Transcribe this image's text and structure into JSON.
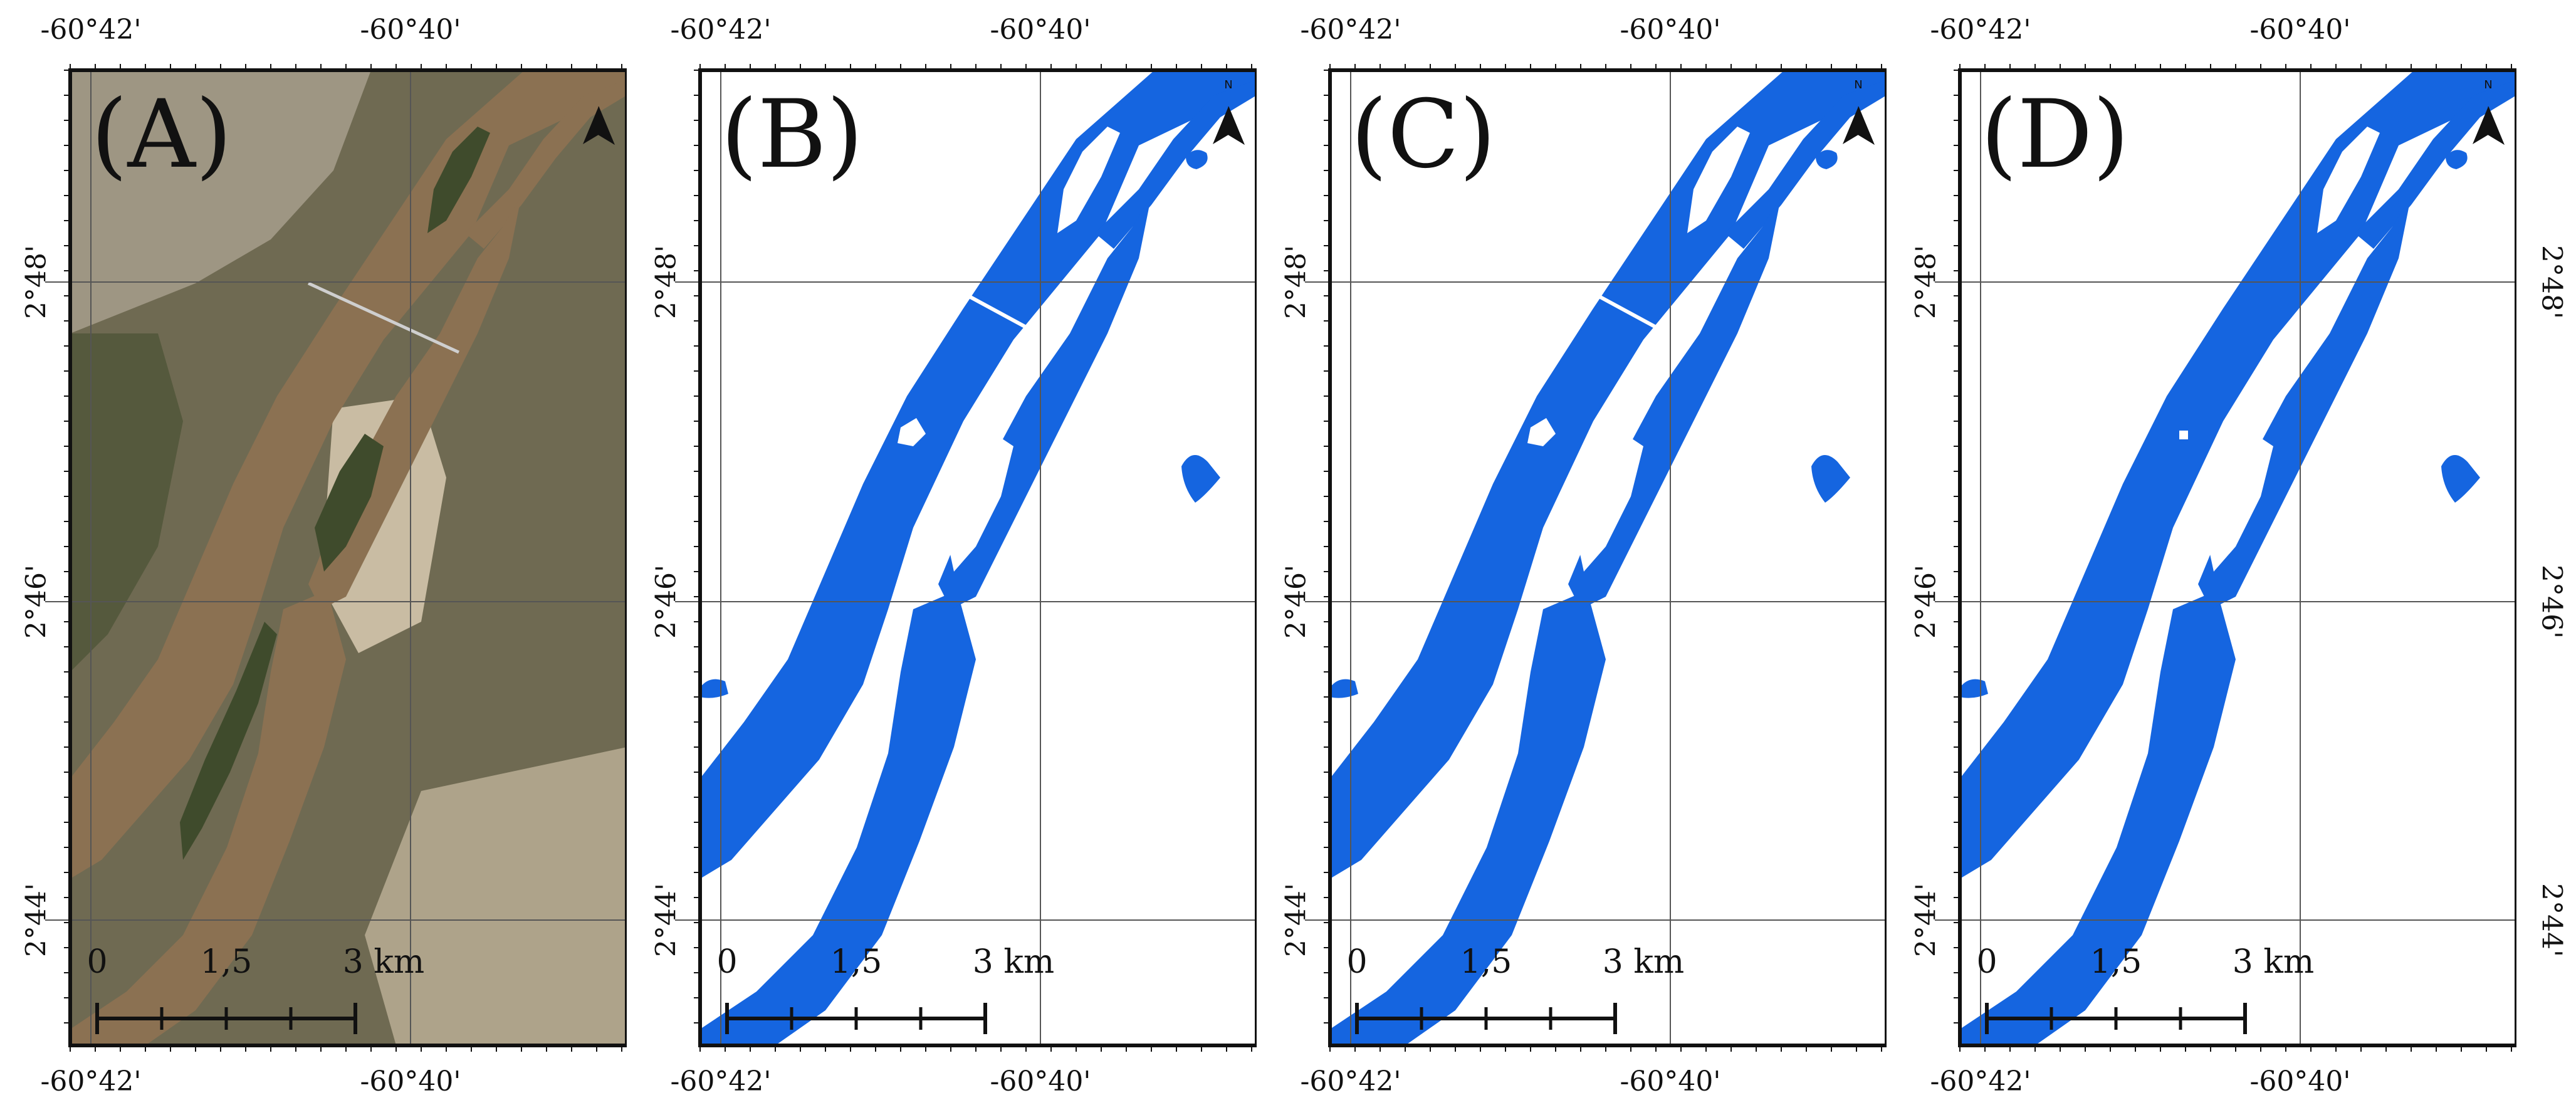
{
  "colors": {
    "water": "#1565e0",
    "frame": "#111111",
    "grid": "#555555",
    "river_satellite": "#8b7152",
    "land_satellite": "#6f6a52",
    "vegetation_satellite": "#3f4b2c",
    "urban_satellite": "#9e9683",
    "bare_soil_satellite": "#c9bca3"
  },
  "panels": [
    {
      "label": "(A)",
      "type": "satellite-rgb",
      "north_label": ""
    },
    {
      "label": "(B)",
      "type": "water-mask",
      "north_label": "N"
    },
    {
      "label": "(C)",
      "type": "water-mask",
      "north_label": "N"
    },
    {
      "label": "(D)",
      "type": "water-mask",
      "north_label": "N"
    }
  ],
  "graticule": {
    "longitudes": [
      "-60°42'",
      "-60°40'"
    ],
    "latitudes": [
      "2°48'",
      "2°46'",
      "2°44'"
    ]
  },
  "scale_bar": {
    "labels": [
      "0",
      "1,5",
      "3 km"
    ],
    "divisions": 4
  }
}
